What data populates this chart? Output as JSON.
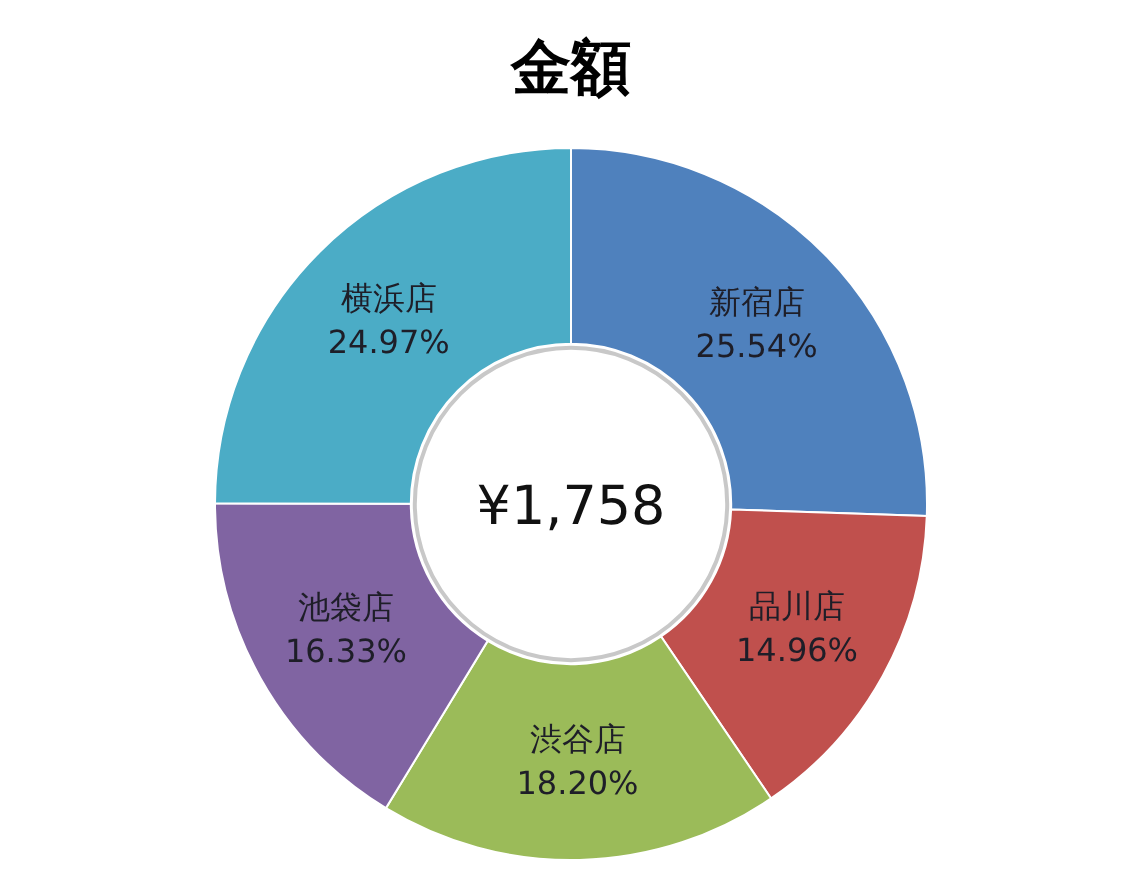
{
  "chart_data": {
    "type": "donut",
    "title": "金額",
    "categories": [
      "新宿店",
      "品川店",
      "渋谷店",
      "池袋店",
      "横浜店"
    ],
    "values": [
      25.54,
      14.96,
      18.2,
      16.33,
      24.97
    ],
    "value_labels": [
      "25.54%",
      "14.96%",
      "18.20%",
      "16.33%",
      "24.97%"
    ],
    "colors": [
      "#4f81bd",
      "#c0504d",
      "#9bbb59",
      "#8064a2",
      "#4bacc6"
    ],
    "annotations": [
      "¥1,758"
    ]
  }
}
